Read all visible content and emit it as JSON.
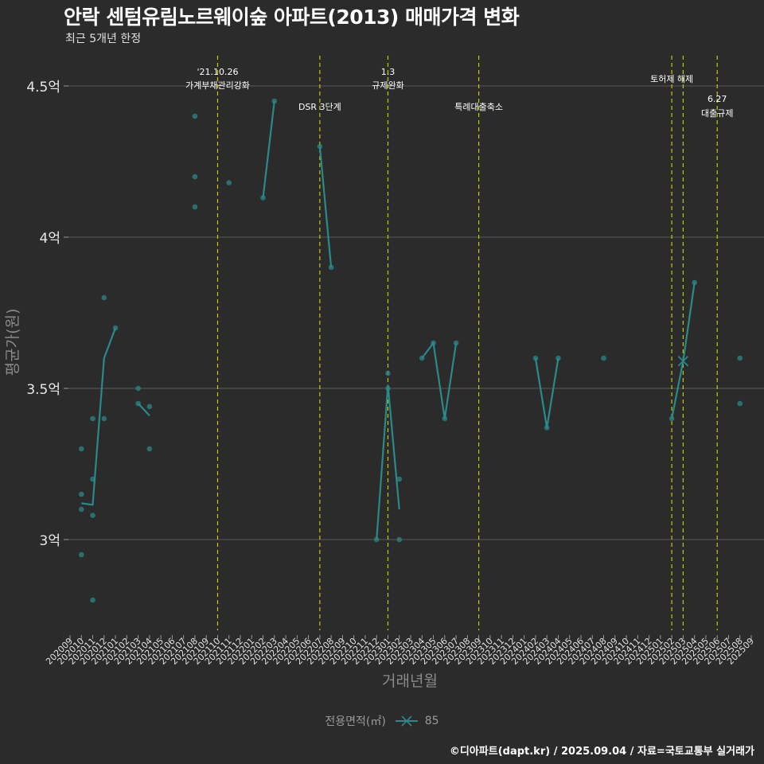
{
  "header": {
    "title": "안락 센텀유림노르웨이숲 아파트(2013) 매매가격 변화",
    "subtitle": "최근 5개년 한정"
  },
  "legend": {
    "title": "전용면적(㎡)",
    "item_label": "85"
  },
  "caption": "©디아파트(dapt.kr) / 2025.09.04 / 자료=국토교통부 실거래가",
  "colors": {
    "background": "#2b2b2b",
    "series": "#2a8a8a",
    "grid": "#5a5a5a",
    "event_line": "#c8c800",
    "text": "#ffffff",
    "axis_label": "#8a8a8a"
  },
  "chart_data": {
    "type": "line",
    "title": "안락 센텀유림노르웨이숲 아파트(2013) 매매가격 변화",
    "xlabel": "거래년월",
    "ylabel": "평균가(원)",
    "ylim": [
      2.7,
      4.6
    ],
    "yticks": [
      {
        "value": 3.0,
        "label": "3억"
      },
      {
        "value": 3.5,
        "label": "3.5억"
      },
      {
        "value": 4.0,
        "label": "4억"
      },
      {
        "value": 4.5,
        "label": "4.5억"
      }
    ],
    "categories": [
      "202009",
      "202010",
      "202011",
      "202012",
      "202101",
      "202102",
      "202103",
      "202104",
      "202105",
      "202106",
      "202107",
      "202108",
      "202109",
      "202110",
      "202111",
      "202112",
      "202201",
      "202202",
      "202203",
      "202204",
      "202205",
      "202206",
      "202207",
      "202208",
      "202209",
      "202210",
      "202211",
      "202212",
      "202301",
      "202302",
      "202303",
      "202304",
      "202305",
      "202306",
      "202307",
      "202308",
      "202309",
      "202310",
      "202311",
      "202312",
      "202401",
      "202402",
      "202403",
      "202404",
      "202405",
      "202406",
      "202407",
      "202408",
      "202409",
      "202410",
      "202411",
      "202412",
      "202501",
      "202502",
      "202503",
      "202504",
      "202505",
      "202506",
      "202507",
      "202508",
      "202509"
    ],
    "events": [
      {
        "month": "202110",
        "line1": "'21.10.26",
        "line2": "가계부채관리강화",
        "row": 0
      },
      {
        "month": "202207",
        "line1": "DSR 3단계",
        "line2": "",
        "row": 1
      },
      {
        "month": "202301",
        "line1": "1.3",
        "line2": "규제완화",
        "row": 0
      },
      {
        "month": "202309",
        "line1": "특례대출축소",
        "line2": "",
        "row": 1
      },
      {
        "month": "202502",
        "line1": "토허제 해제",
        "line2": "",
        "row": 2
      },
      {
        "month": "202503",
        "line1": "",
        "line2": "",
        "row": 2
      },
      {
        "month": "202506",
        "line1": "6.27",
        "line2": "대출규제",
        "row": 3
      }
    ],
    "series": [
      {
        "name": "85",
        "line": [
          {
            "x": "202010",
            "y": 3.12
          },
          {
            "x": "202011",
            "y": 3.115
          },
          {
            "x": "202012",
            "y": 3.6
          },
          {
            "x": "202101",
            "y": 3.7
          },
          null,
          {
            "x": "202103",
            "y": 3.45
          },
          {
            "x": "202104",
            "y": 3.41
          },
          null,
          {
            "x": "202202",
            "y": 4.13
          },
          {
            "x": "202203",
            "y": 4.45
          },
          null,
          {
            "x": "202207",
            "y": 4.3
          },
          {
            "x": "202208",
            "y": 3.9
          },
          null,
          {
            "x": "202212",
            "y": 3.0
          },
          {
            "x": "202301",
            "y": 3.51
          },
          {
            "x": "202302",
            "y": 3.1
          },
          null,
          {
            "x": "202304",
            "y": 3.6
          },
          {
            "x": "202305",
            "y": 3.65
          },
          {
            "x": "202306",
            "y": 3.4
          },
          {
            "x": "202307",
            "y": 3.65
          },
          null,
          {
            "x": "202402",
            "y": 3.6
          },
          {
            "x": "202403",
            "y": 3.37
          },
          {
            "x": "202404",
            "y": 3.6
          },
          null,
          {
            "x": "202502",
            "y": 3.4
          },
          {
            "x": "202503",
            "y": 3.59
          },
          {
            "x": "202504",
            "y": 3.85
          }
        ],
        "points": [
          {
            "x": "202010",
            "y": 3.3
          },
          {
            "x": "202010",
            "y": 3.15
          },
          {
            "x": "202010",
            "y": 3.1
          },
          {
            "x": "202010",
            "y": 2.95
          },
          {
            "x": "202011",
            "y": 3.4
          },
          {
            "x": "202011",
            "y": 3.2
          },
          {
            "x": "202011",
            "y": 3.08
          },
          {
            "x": "202011",
            "y": 2.8
          },
          {
            "x": "202012",
            "y": 3.8
          },
          {
            "x": "202012",
            "y": 3.4
          },
          {
            "x": "202101",
            "y": 3.7
          },
          {
            "x": "202103",
            "y": 3.5
          },
          {
            "x": "202103",
            "y": 3.45
          },
          {
            "x": "202104",
            "y": 3.44
          },
          {
            "x": "202104",
            "y": 3.3
          },
          {
            "x": "202108",
            "y": 4.4
          },
          {
            "x": "202108",
            "y": 4.2
          },
          {
            "x": "202108",
            "y": 4.1
          },
          {
            "x": "202111",
            "y": 4.18
          },
          {
            "x": "202202",
            "y": 4.13
          },
          {
            "x": "202203",
            "y": 4.45
          },
          {
            "x": "202207",
            "y": 4.3
          },
          {
            "x": "202208",
            "y": 3.9
          },
          {
            "x": "202212",
            "y": 3.0
          },
          {
            "x": "202301",
            "y": 3.55
          },
          {
            "x": "202301",
            "y": 3.5
          },
          {
            "x": "202302",
            "y": 3.2
          },
          {
            "x": "202302",
            "y": 3.0
          },
          {
            "x": "202304",
            "y": 3.6
          },
          {
            "x": "202305",
            "y": 3.65
          },
          {
            "x": "202306",
            "y": 3.4
          },
          {
            "x": "202307",
            "y": 3.65
          },
          {
            "x": "202402",
            "y": 3.6
          },
          {
            "x": "202403",
            "y": 3.37
          },
          {
            "x": "202404",
            "y": 3.6
          },
          {
            "x": "202408",
            "y": 3.6
          },
          {
            "x": "202502",
            "y": 3.4
          },
          {
            "x": "202504",
            "y": 3.85
          },
          {
            "x": "202508",
            "y": 3.6
          },
          {
            "x": "202508",
            "y": 3.45
          }
        ],
        "crosses": [
          {
            "x": "202503",
            "y": 3.59
          }
        ]
      }
    ]
  }
}
